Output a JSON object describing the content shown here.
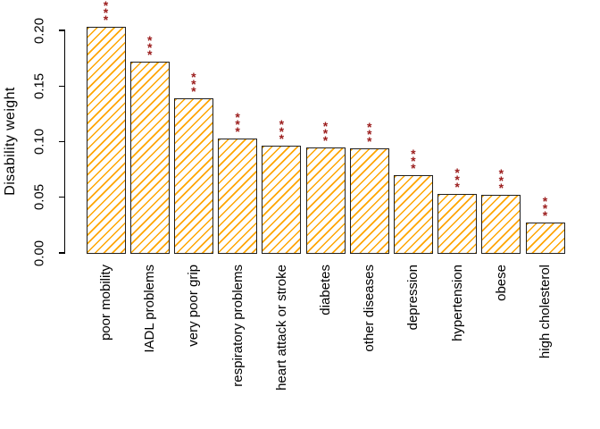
{
  "chart_data": {
    "type": "bar",
    "title": "",
    "xlabel": "",
    "ylabel": "Disability weight",
    "categories": [
      "poor mobility",
      "IADL problems",
      "very poor grip",
      "respiratory problems",
      "heart attack or stroke",
      "diabetes",
      "other diseases",
      "depression",
      "hypertension",
      "obese",
      "high cholesterol"
    ],
    "values": [
      0.203,
      0.172,
      0.139,
      0.103,
      0.096,
      0.095,
      0.094,
      0.07,
      0.053,
      0.052,
      0.027
    ],
    "significance": [
      "***",
      "***",
      "***",
      "***",
      "***",
      "***",
      "***",
      "***",
      "***",
      "***",
      "***"
    ],
    "ylim": [
      0,
      0.2
    ],
    "yticks": [
      "0.00",
      "0.05",
      "0.10",
      "0.15",
      "0.20"
    ],
    "grid": false,
    "legend": null,
    "bar_style": "diagonal-hatch",
    "colors": {
      "hatch": "#FFA500",
      "bar_fill": "#FFFFFF",
      "border": "#1f1f1f",
      "significance": "#9B1C1C",
      "axis": "#000000",
      "background": "#FFFFFF"
    }
  }
}
